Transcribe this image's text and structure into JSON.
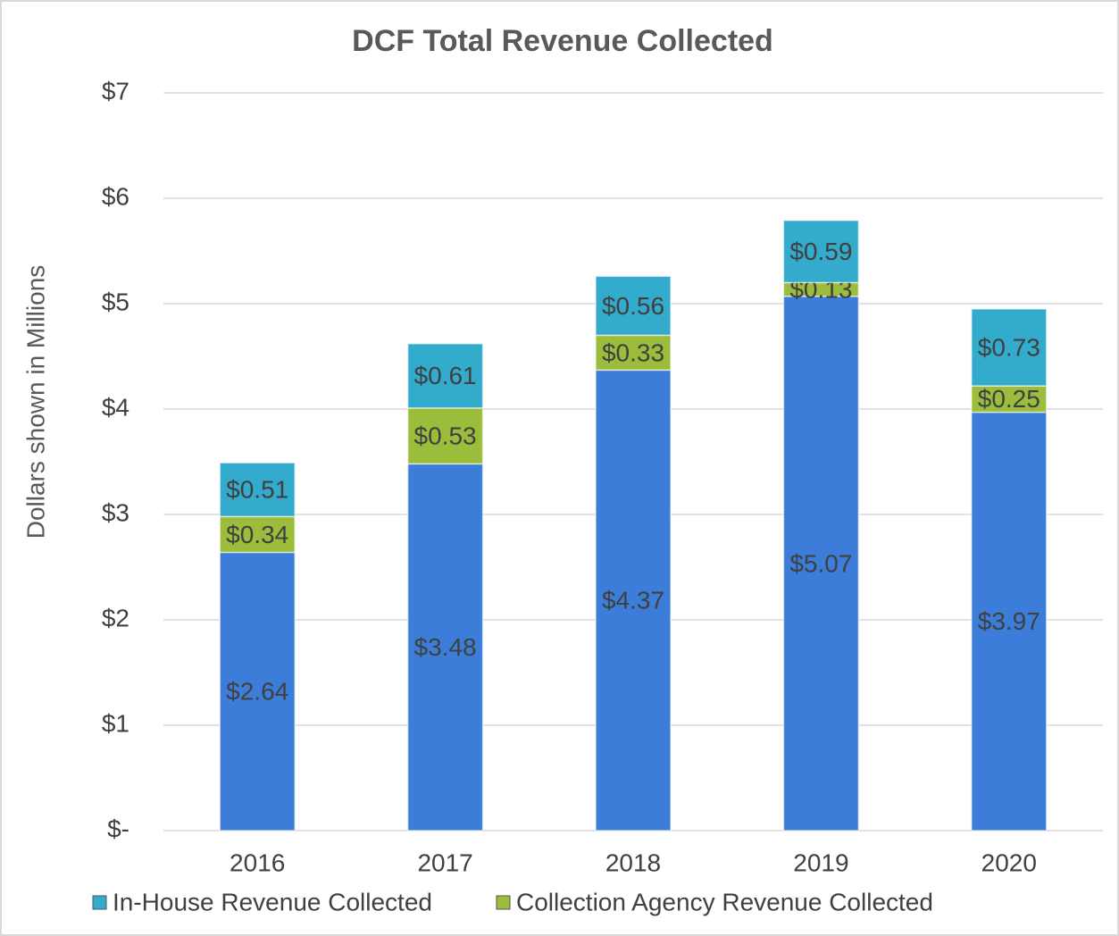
{
  "chart_data": {
    "type": "stacked_bar",
    "title": "DCF Total Revenue Collected",
    "y_label": "Dollars shown in Millions",
    "categories": [
      "2016",
      "2017",
      "2018",
      "2019",
      "2020"
    ],
    "series": [
      {
        "color": "#3b7dd8",
        "values": [
          2.64,
          3.48,
          4.37,
          5.07,
          3.97
        ],
        "value_labels": [
          "$2.64",
          "$3.48",
          "$4.37",
          "$5.07",
          "$3.97"
        ]
      },
      {
        "name": "Collection Agency Revenue Collected",
        "color": "#9cbd3c",
        "values": [
          0.34,
          0.53,
          0.33,
          0.13,
          0.25
        ],
        "value_labels": [
          "$0.34",
          "$0.53",
          "$0.33",
          "$0.13",
          "$0.25"
        ]
      },
      {
        "name": "In-House Revenue Collected",
        "color": "#33abcc",
        "values": [
          0.51,
          0.61,
          0.56,
          0.59,
          0.73
        ],
        "value_labels": [
          "$0.51",
          "$0.61",
          "$0.56",
          "$0.59",
          "$0.73"
        ]
      }
    ],
    "ylim": [
      0,
      7
    ],
    "yticks": [
      {
        "value": 0,
        "label": "$-"
      },
      {
        "value": 1,
        "label": "$1"
      },
      {
        "value": 2,
        "label": "$2"
      },
      {
        "value": 3,
        "label": "$3"
      },
      {
        "value": 4,
        "label": "$4"
      },
      {
        "value": 5,
        "label": "$5"
      },
      {
        "value": 6,
        "label": "$6"
      },
      {
        "value": 7,
        "label": "$7"
      }
    ],
    "grid": true
  }
}
